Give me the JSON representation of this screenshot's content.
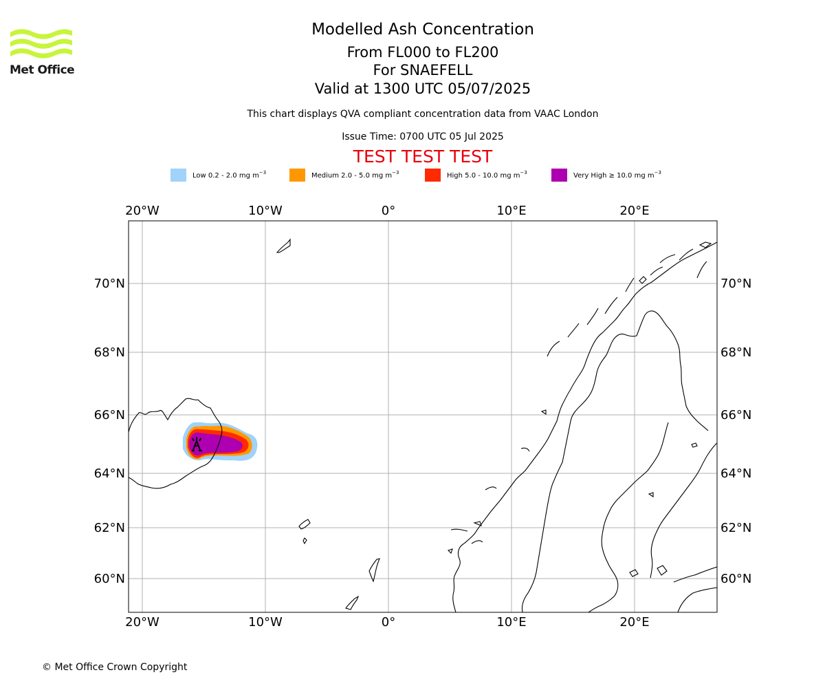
{
  "logo": {
    "text": "Met Office",
    "colors": {
      "waves": "#c6f53a"
    }
  },
  "header": {
    "title": "Modelled Ash Concentration",
    "subtitle_1": "From FL000 to FL200",
    "subtitle_2": "For SNAEFELL",
    "subtitle_3": "Valid at 1300 UTC 05/07/2025",
    "qva_note": "This chart displays QVA compliant concentration data from VAAC London",
    "issue_time": "Issue Time: 0700 UTC 05 Jul 2025",
    "test_banner": "TEST TEST TEST"
  },
  "legend": [
    {
      "label": "Low 0.2 - 2.0 mg m",
      "exp": "−3",
      "color": "#a0d2fa"
    },
    {
      "label": "Medium 2.0 - 5.0 mg m",
      "exp": "−3",
      "color": "#ff9800"
    },
    {
      "label": "High 5.0 - 10.0 mg m",
      "exp": "−3",
      "color": "#ff2a00"
    },
    {
      "label": "Very High  ≥  10.0 mg m",
      "exp": "−3",
      "color": "#ae00b0"
    }
  ],
  "map": {
    "lon_ticks": [
      "20°W",
      "10°W",
      "0°",
      "10°E",
      "20°E"
    ],
    "lat_ticks": [
      "70°N",
      "68°N",
      "66°N",
      "64°N",
      "62°N",
      "60°N"
    ],
    "volcano_icon": "volcano-icon",
    "colors": {
      "grid": "#b0b0b0",
      "coast": "#000000"
    }
  },
  "footer": {
    "copyright": "© Met Office Crown Copyright"
  }
}
